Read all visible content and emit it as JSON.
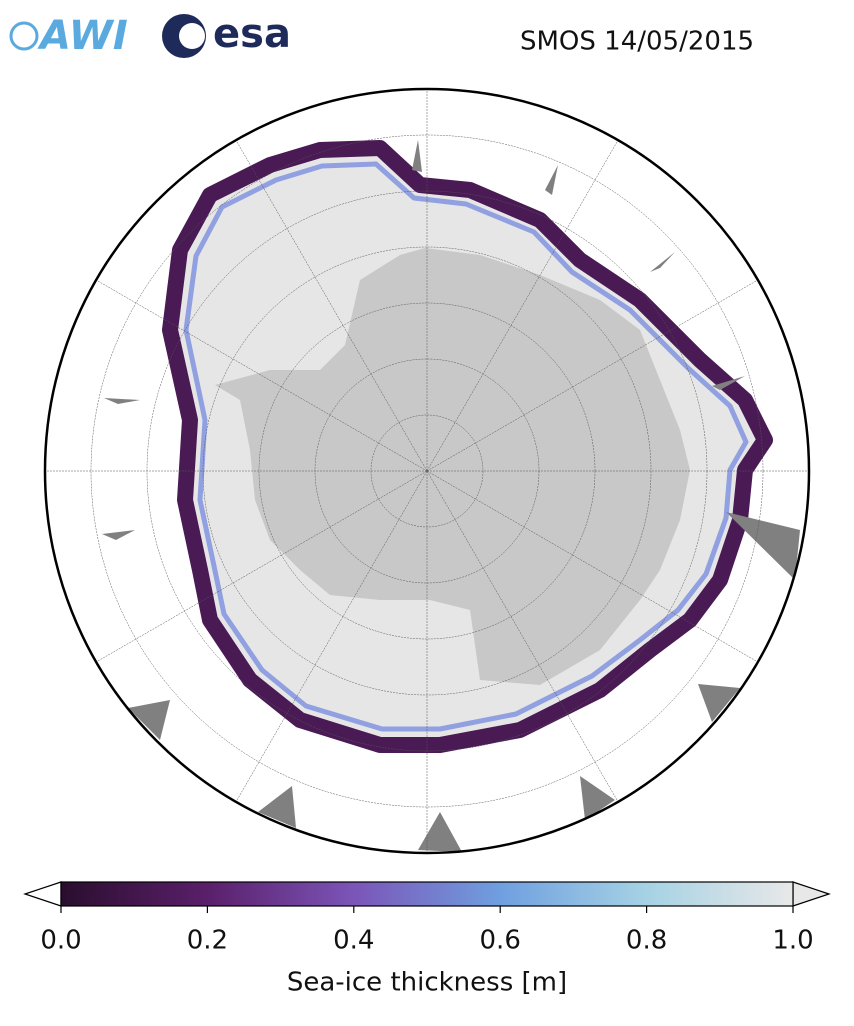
{
  "logos": {
    "awi": "AWI",
    "esa": "esa"
  },
  "title": "SMOS 14/05/2015",
  "colorbar": {
    "label": "Sea-ice thickness [m]",
    "lim": [
      0,
      1
    ],
    "ticks": [
      {
        "value": 0,
        "label": "0.0"
      },
      {
        "value": 0.2,
        "label": "0.2"
      },
      {
        "value": 0.4,
        "label": "0.4"
      },
      {
        "value": 0.6,
        "label": "0.6"
      },
      {
        "value": 0.8,
        "label": "0.8"
      },
      {
        "value": 1,
        "label": "1.0"
      }
    ]
  }
}
